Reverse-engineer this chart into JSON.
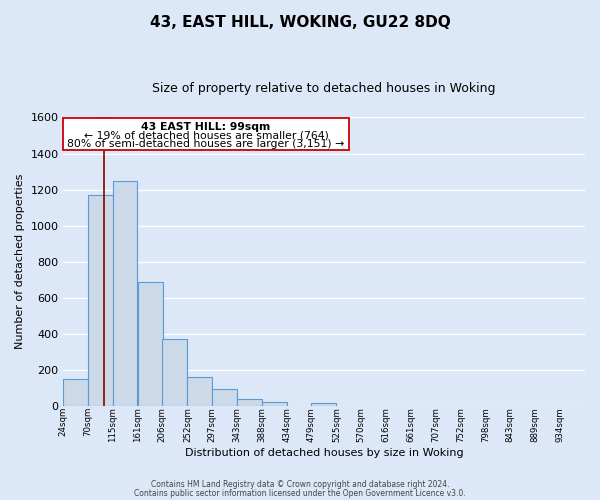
{
  "title": "43, EAST HILL, WOKING, GU22 8DQ",
  "subtitle": "Size of property relative to detached houses in Woking",
  "xlabel": "Distribution of detached houses by size in Woking",
  "ylabel": "Number of detached properties",
  "bin_labels": [
    "24sqm",
    "70sqm",
    "115sqm",
    "161sqm",
    "206sqm",
    "252sqm",
    "297sqm",
    "343sqm",
    "388sqm",
    "434sqm",
    "479sqm",
    "525sqm",
    "570sqm",
    "616sqm",
    "661sqm",
    "707sqm",
    "752sqm",
    "798sqm",
    "843sqm",
    "889sqm",
    "934sqm"
  ],
  "bar_values": [
    150,
    1170,
    1250,
    685,
    370,
    160,
    90,
    35,
    20,
    0,
    15,
    0,
    0,
    0,
    0,
    0,
    0,
    0,
    0,
    0,
    0
  ],
  "bar_color": "#ccd9e8",
  "bar_edge_color": "#5b9bd5",
  "vline_x": 99,
  "vline_color": "#8b0000",
  "ylim": [
    0,
    1600
  ],
  "yticks": [
    0,
    200,
    400,
    600,
    800,
    1000,
    1200,
    1400,
    1600
  ],
  "annotation_text_line1": "43 EAST HILL: 99sqm",
  "annotation_text_line2": "← 19% of detached houses are smaller (764)",
  "annotation_text_line3": "80% of semi-detached houses are larger (3,151) →",
  "footer_line1": "Contains HM Land Registry data © Crown copyright and database right 2024.",
  "footer_line2": "Contains public sector information licensed under the Open Government Licence v3.0.",
  "background_color": "#dce8f8",
  "grid_color": "#ffffff"
}
